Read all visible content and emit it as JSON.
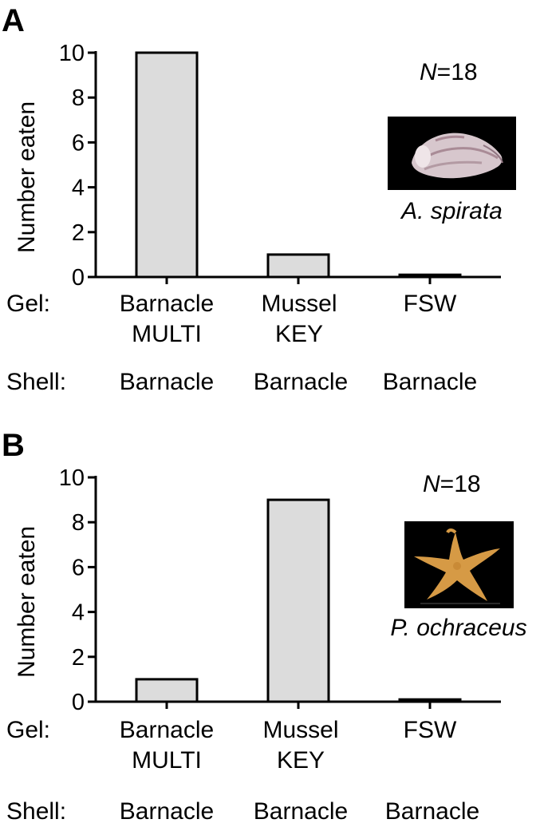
{
  "chart_data": [
    {
      "type": "bar",
      "panel_letter": "A",
      "ylabel": "Number eaten",
      "ylim": [
        0,
        10
      ],
      "yticks": [
        "0",
        "2",
        "4",
        "6",
        "8",
        "10"
      ],
      "categories": [
        {
          "gel_line1": "Barnacle",
          "gel_line2": "MULTI",
          "shell": "Barnacle"
        },
        {
          "gel_line1": "Mussel",
          "gel_line2": "KEY",
          "shell": "Barnacle"
        },
        {
          "gel_line1": "FSW",
          "gel_line2": "",
          "shell": "Barnacle"
        }
      ],
      "values": [
        10,
        1,
        0.1
      ],
      "gel_label": "Gel:",
      "shell_label": "Shell:",
      "n_label": {
        "italic": "N",
        "rest": "=18"
      },
      "species": "A. spirata",
      "photo": "whelk-shell",
      "bar_color": "#dcdcdc"
    },
    {
      "type": "bar",
      "panel_letter": "B",
      "ylabel": "Number eaten",
      "ylim": [
        0,
        10
      ],
      "yticks": [
        "0",
        "2",
        "4",
        "6",
        "8",
        "10"
      ],
      "categories": [
        {
          "gel_line1": "Barnacle",
          "gel_line2": "MULTI",
          "shell": "Barnacle"
        },
        {
          "gel_line1": "Mussel",
          "gel_line2": "KEY",
          "shell": "Barnacle"
        },
        {
          "gel_line1": "FSW",
          "gel_line2": "",
          "shell": "Barnacle"
        }
      ],
      "values": [
        1,
        9,
        0.1
      ],
      "gel_label": "Gel:",
      "shell_label": "Shell:",
      "n_label": {
        "italic": "N",
        "rest": "=18"
      },
      "species": "P. ochraceus",
      "photo": "sea-star",
      "bar_color": "#dcdcdc"
    }
  ]
}
